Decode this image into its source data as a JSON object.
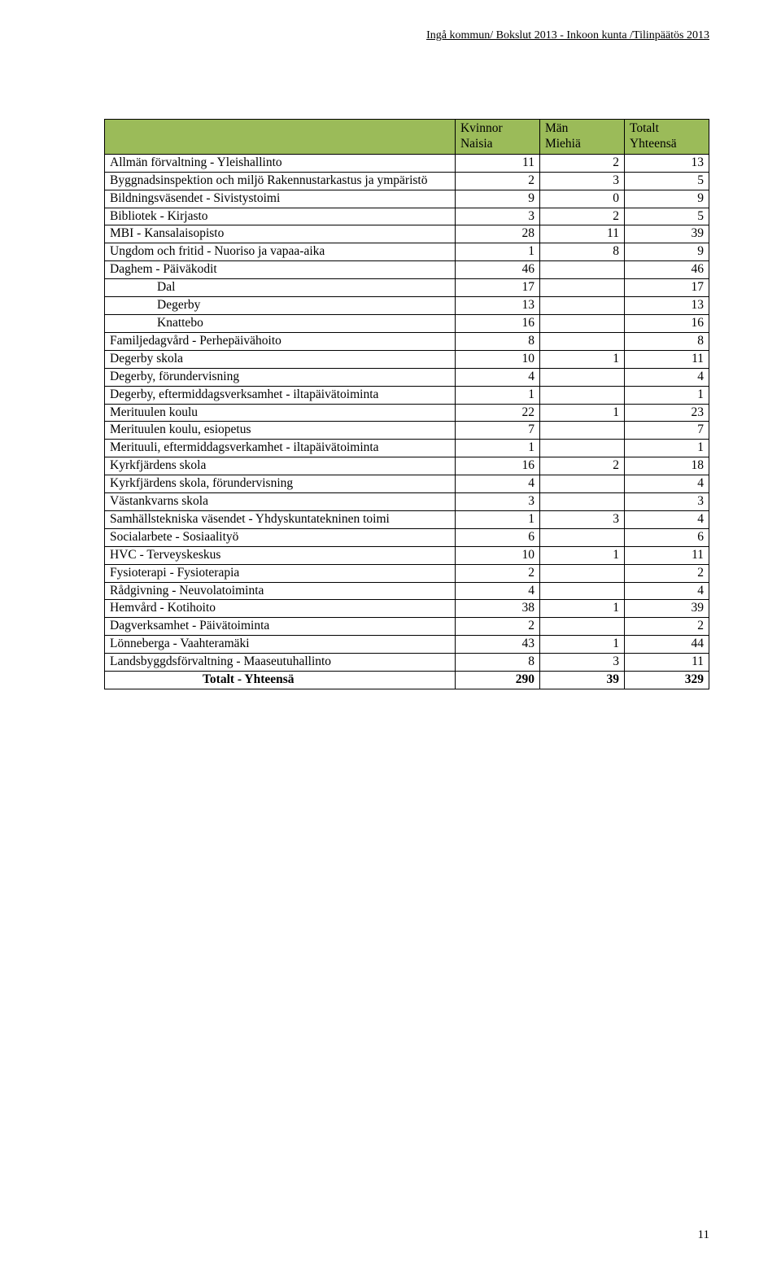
{
  "document_header": "Ingå kommun/ Bokslut 2013 - Inkoon kunta /Tilinpäätös 2013",
  "page_number": "11",
  "table": {
    "header_bg": "#9bbb59",
    "columns": [
      {
        "l1": "",
        "l2": ""
      },
      {
        "l1": "Kvinnor",
        "l2": "Naisia"
      },
      {
        "l1": "Män",
        "l2": "Miehiä"
      },
      {
        "l1": "Totalt",
        "l2": "Yhteensä"
      }
    ],
    "rows": [
      {
        "label": "Allmän förvaltning - Yleishallinto",
        "v": [
          "11",
          "2",
          "13"
        ]
      },
      {
        "label": "Byggnadsinspektion och miljö Rakennustarkastus ja ympäristö",
        "v": [
          "2",
          "3",
          "5"
        ]
      },
      {
        "label": "Bildningsväsendet - Sivistystoimi",
        "v": [
          "9",
          "0",
          "9"
        ]
      },
      {
        "label": "Bibliotek - Kirjasto",
        "v": [
          "3",
          "2",
          "5"
        ]
      },
      {
        "label": "MBI - Kansalaisopisto",
        "v": [
          "28",
          "11",
          "39"
        ]
      },
      {
        "label": "Ungdom och fritid - Nuoriso ja vapaa-aika",
        "v": [
          "1",
          "8",
          "9"
        ]
      },
      {
        "label": "Daghem - Päiväkodit",
        "v": [
          "46",
          "",
          "46"
        ]
      },
      {
        "label": "Dal",
        "indent": 1,
        "v": [
          "17",
          "",
          "17"
        ]
      },
      {
        "label": "Degerby",
        "indent": 1,
        "v": [
          "13",
          "",
          "13"
        ]
      },
      {
        "label": "Knattebo",
        "indent": 1,
        "v": [
          "16",
          "",
          "16"
        ]
      },
      {
        "label": "Familjedagvård - Perhepäivähoito",
        "v": [
          "8",
          "",
          "8"
        ]
      },
      {
        "label": "Degerby skola",
        "v": [
          "10",
          "1",
          "11"
        ]
      },
      {
        "label": "Degerby, förundervisning",
        "v": [
          "4",
          "",
          "4"
        ]
      },
      {
        "label": "Degerby, eftermiddagsverksamhet - iltapäivätoiminta",
        "v": [
          "1",
          "",
          "1"
        ]
      },
      {
        "label": "Merituulen koulu",
        "v": [
          "22",
          "1",
          "23"
        ]
      },
      {
        "label": "Merituulen koulu, esiopetus",
        "v": [
          "7",
          "",
          "7"
        ]
      },
      {
        "label": "Merituuli, eftermiddagsverkamhet - iltapäivätoiminta",
        "v": [
          "1",
          "",
          "1"
        ]
      },
      {
        "label": "Kyrkfjärdens skola",
        "v": [
          "16",
          "2",
          "18"
        ]
      },
      {
        "label": "Kyrkfjärdens skola, förundervisning",
        "v": [
          "4",
          "",
          "4"
        ]
      },
      {
        "label": "Västankvarns skola",
        "v": [
          "3",
          "",
          "3"
        ]
      },
      {
        "label": "Samhällstekniska väsendet - Yhdyskuntatekninen toimi",
        "v": [
          "1",
          "3",
          "4"
        ]
      },
      {
        "label": "Socialarbete - Sosiaalityö",
        "v": [
          "6",
          "",
          "6"
        ]
      },
      {
        "label": "HVC - Terveyskeskus",
        "v": [
          "10",
          "1",
          "11"
        ]
      },
      {
        "label": "Fysioterapi - Fysioterapia",
        "v": [
          "2",
          "",
          "2"
        ]
      },
      {
        "label": "Rådgivning - Neuvolatoiminta",
        "v": [
          "4",
          "",
          "4"
        ]
      },
      {
        "label": "Hemvård - Kotihoito",
        "v": [
          "38",
          "1",
          "39"
        ]
      },
      {
        "label": "Dagverksamhet - Päivätoiminta",
        "v": [
          "2",
          "",
          "2"
        ]
      },
      {
        "label": "Lönneberga - Vaahteramäki",
        "v": [
          "43",
          "1",
          "44"
        ]
      },
      {
        "label": "Landsbyggdsförvaltning - Maaseutuhallinto",
        "v": [
          "8",
          "3",
          "11"
        ]
      },
      {
        "label": "Totalt - Yhteensä",
        "indent": 2,
        "bold": true,
        "v": [
          "290",
          "39",
          "329"
        ]
      }
    ]
  }
}
